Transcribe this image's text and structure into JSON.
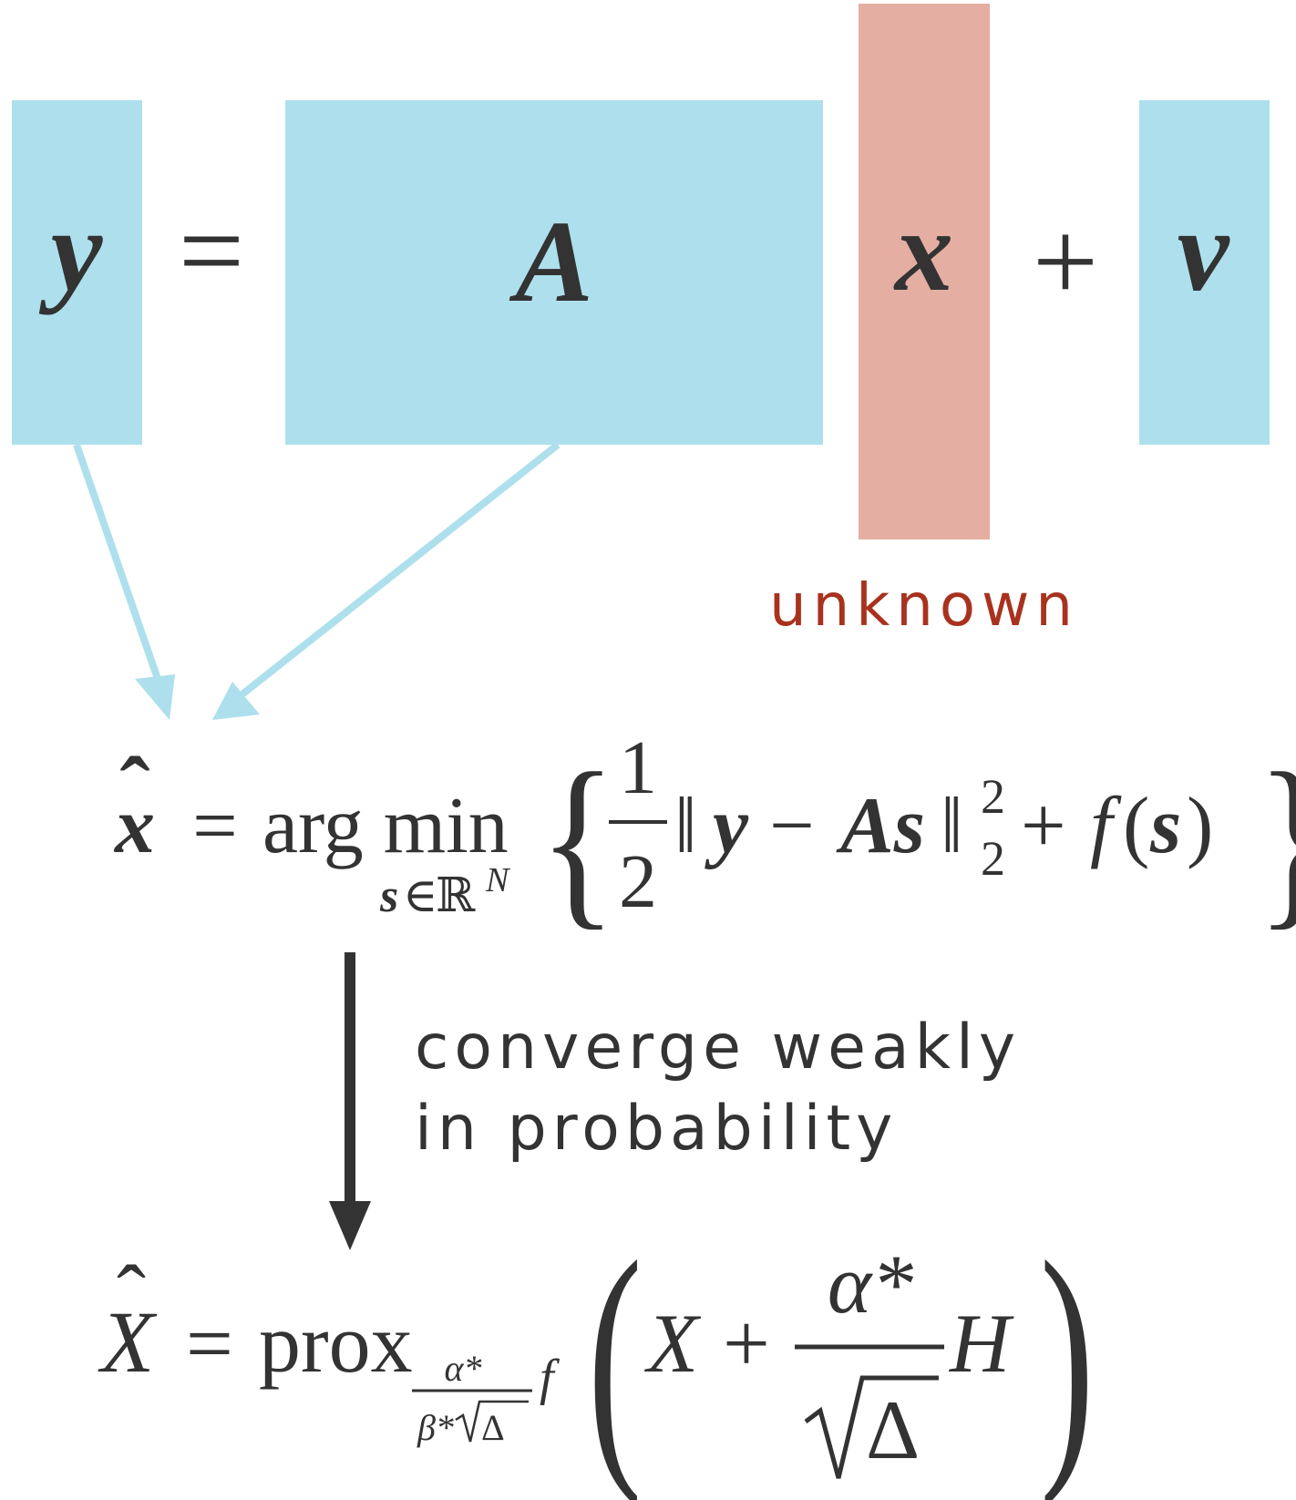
{
  "colors": {
    "block": "#ADE0EC",
    "unknown_block": "#E5AEA3",
    "ink": "#333333",
    "unknown_text": "#A8321E",
    "arrow_light": "#ADE0EC"
  },
  "top_equation": {
    "y": "y",
    "equals": "=",
    "A": "A",
    "x": "x",
    "plus": "+",
    "v": "v"
  },
  "unknown_label": "unknown",
  "estimator": {
    "lhs": "x",
    "hat": "ˆ",
    "equals": "=",
    "argmin": "arg min",
    "sub_s": "s",
    "sub_in": "∈",
    "sub_R": "ℝ",
    "sub_N": "N",
    "brace_open": "{",
    "brace_close": "}",
    "frac_num": "1",
    "frac_den": "2",
    "norm_open": "‖",
    "y": "y",
    "minus": "−",
    "As": "As",
    "norm_close": "‖",
    "sup": "2",
    "sub": "2",
    "plus": "+",
    "f": "f",
    "paren_open": "(",
    "s": "s",
    "paren_close": ")"
  },
  "convergence": {
    "line1": "converge weakly",
    "line2": "in probability"
  },
  "limit": {
    "lhs": "X",
    "hat": "ˆ",
    "equals": "=",
    "prox": "prox",
    "sub_num": "α*",
    "sub_den_beta": "β*",
    "sub_den_delta": "Δ",
    "f": "f",
    "big_open": "(",
    "X": "X",
    "plus": "+",
    "frac_num": "α*",
    "frac_den": "Δ",
    "H": "H",
    "big_close": ")"
  }
}
